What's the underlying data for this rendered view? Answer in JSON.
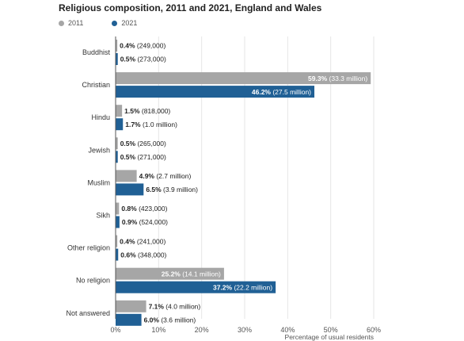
{
  "chart_data": {
    "type": "bar",
    "orientation": "horizontal",
    "title": "Religious composition, 2011 and 2021, England and Wales",
    "xlabel": "Percentage of usual residents",
    "ylabel": "",
    "xlim": [
      0,
      60
    ],
    "x_ticks": [
      "0%",
      "10%",
      "20%",
      "30%",
      "40%",
      "50%",
      "60%"
    ],
    "grid": true,
    "legend_placement": "top-left",
    "categories": [
      "Buddhist",
      "Christian",
      "Hindu",
      "Jewish",
      "Muslim",
      "Sikh",
      "Other religion",
      "No religion",
      "Not answered"
    ],
    "series": [
      {
        "name": "2011",
        "color": "#a6a6a6",
        "values": [
          0.4,
          59.3,
          1.5,
          0.5,
          4.9,
          0.8,
          0.4,
          25.2,
          7.1
        ],
        "value_labels": [
          "0.4%",
          "59.3%",
          "1.5%",
          "0.5%",
          "4.9%",
          "0.8%",
          "0.4%",
          "25.2%",
          "7.1%"
        ],
        "count_labels": [
          "(249,000)",
          "(33.3 million)",
          "(818,000)",
          "(265,000)",
          "(2.7 million)",
          "(423,000)",
          "(241,000)",
          "(14.1 million)",
          "(4.0 million)"
        ]
      },
      {
        "name": "2021",
        "color": "#206095",
        "values": [
          0.5,
          46.2,
          1.7,
          0.5,
          6.5,
          0.9,
          0.6,
          37.2,
          6.0
        ],
        "value_labels": [
          "0.5%",
          "46.2%",
          "1.7%",
          "0.5%",
          "6.5%",
          "0.9%",
          "0.6%",
          "37.2%",
          "6.0%"
        ],
        "count_labels": [
          "(273,000)",
          "(27.5 million)",
          "(1.0 million)",
          "(271,000)",
          "(3.9 million)",
          "(524,000)",
          "(348,000)",
          "(22.2 million)",
          "(3.6 million)"
        ]
      }
    ]
  }
}
